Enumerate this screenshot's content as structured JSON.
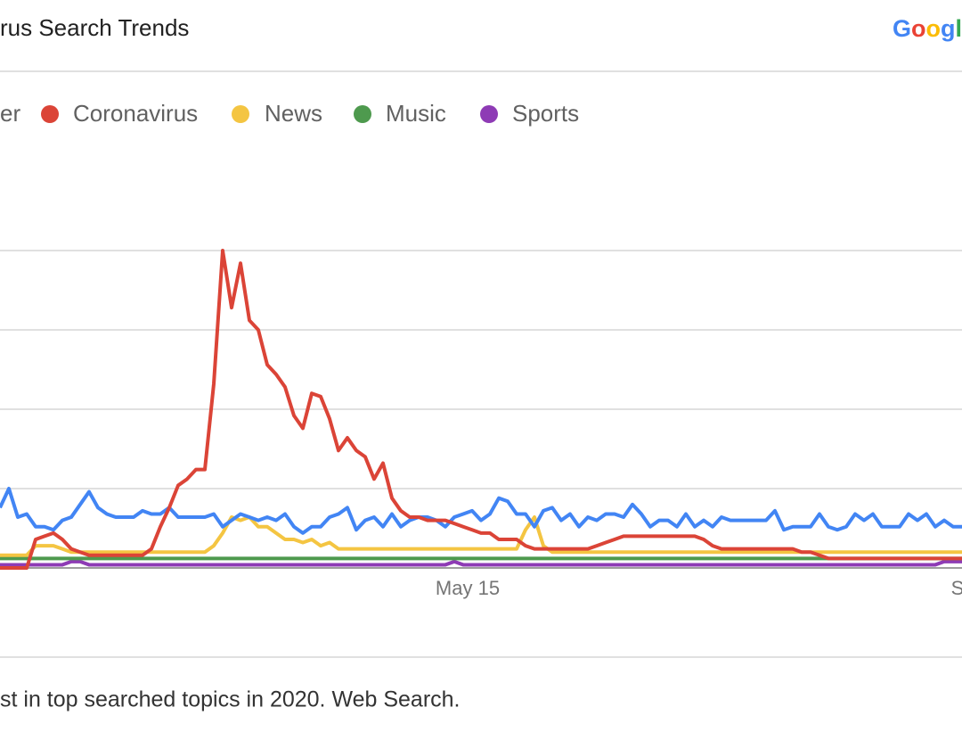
{
  "header": {
    "title": "rus Search Trends",
    "logo": [
      "G",
      "o",
      "o",
      "g",
      "l"
    ]
  },
  "chart_data": {
    "type": "line",
    "categories": [
      null,
      null,
      null,
      null,
      null,
      null,
      null,
      null,
      null,
      null,
      null,
      null,
      null,
      null,
      null,
      null,
      null,
      null,
      null,
      null,
      null,
      null,
      null,
      null,
      null,
      null,
      null,
      null,
      null,
      null,
      null,
      null,
      null,
      null,
      null,
      null,
      null,
      null,
      null,
      null,
      null,
      null,
      null,
      null,
      null,
      null,
      null,
      null,
      null,
      null,
      null,
      null,
      "May 15",
      null,
      null,
      null,
      null,
      null,
      null,
      null,
      null,
      null,
      null,
      null,
      null,
      null,
      null,
      null,
      null,
      null,
      null,
      null,
      null,
      null,
      null,
      null,
      null,
      null,
      null,
      null,
      null,
      null,
      null,
      null,
      null,
      null,
      null,
      null,
      null,
      null,
      null,
      null,
      null,
      null,
      null,
      null,
      null,
      null,
      null,
      null,
      null,
      null,
      null,
      null,
      null,
      null,
      null,
      "S",
      null
    ],
    "ylim": [
      0,
      100
    ],
    "yticks": [
      0,
      25,
      50,
      75,
      100
    ],
    "grid": true,
    "series": [
      {
        "name": "er",
        "color": "#4285f4",
        "values": [
          19,
          25,
          16,
          17,
          13,
          13,
          12,
          15,
          16,
          20,
          24,
          19,
          17,
          16,
          16,
          16,
          18,
          17,
          17,
          19,
          16,
          16,
          16,
          16,
          17,
          13,
          15,
          17,
          16,
          15,
          16,
          15,
          17,
          13,
          11,
          13,
          13,
          16,
          17,
          19,
          12,
          15,
          16,
          13,
          17,
          13,
          15,
          16,
          16,
          15,
          13,
          16,
          17,
          18,
          15,
          17,
          22,
          21,
          17,
          17,
          13,
          18,
          19,
          15,
          17,
          13,
          16,
          15,
          17,
          17,
          16,
          20,
          17,
          13,
          15,
          15,
          13,
          17,
          13,
          15,
          13,
          16,
          15,
          15,
          15,
          15,
          15,
          18,
          12,
          13,
          13,
          13,
          17,
          13,
          12,
          13,
          17,
          15,
          17,
          13,
          13,
          13,
          17,
          15,
          17,
          13,
          15,
          13,
          13
        ]
      },
      {
        "name": "Coronavirus",
        "color": "#db4437",
        "values": [
          0,
          0,
          0,
          0,
          9,
          10,
          11,
          9,
          6,
          5,
          4,
          4,
          4,
          4,
          4,
          4,
          4,
          6,
          13,
          19,
          26,
          28,
          31,
          31,
          58,
          100,
          82,
          96,
          78,
          75,
          64,
          61,
          57,
          48,
          44,
          55,
          54,
          47,
          37,
          41,
          37,
          35,
          28,
          33,
          22,
          18,
          16,
          16,
          15,
          15,
          15,
          14,
          13,
          12,
          11,
          11,
          9,
          9,
          9,
          7,
          6,
          6,
          6,
          6,
          6,
          6,
          6,
          7,
          8,
          9,
          10,
          10,
          10,
          10,
          10,
          10,
          10,
          10,
          10,
          9,
          7,
          6,
          6,
          6,
          6,
          6,
          6,
          6,
          6,
          6,
          5,
          5,
          4,
          3,
          3,
          3,
          3,
          3,
          3,
          3,
          3,
          3,
          3,
          3,
          3,
          3,
          3,
          3,
          3
        ]
      },
      {
        "name": "News",
        "color": "#f4c542",
        "values": [
          4,
          4,
          4,
          4,
          7,
          7,
          7,
          6,
          5,
          5,
          5,
          5,
          5,
          5,
          5,
          5,
          5,
          5,
          5,
          5,
          5,
          5,
          5,
          5,
          7,
          11,
          16,
          15,
          16,
          13,
          13,
          11,
          9,
          9,
          8,
          9,
          7,
          8,
          6,
          6,
          6,
          6,
          6,
          6,
          6,
          6,
          6,
          6,
          6,
          6,
          6,
          6,
          6,
          6,
          6,
          6,
          6,
          6,
          6,
          12,
          16,
          7,
          5,
          5,
          5,
          5,
          5,
          5,
          5,
          5,
          5,
          5,
          5,
          5,
          5,
          5,
          5,
          5,
          5,
          5,
          5,
          5,
          5,
          5,
          5,
          5,
          5,
          5,
          5,
          5,
          5,
          5,
          5,
          5,
          5,
          5,
          5,
          5,
          5,
          5,
          5,
          5,
          5,
          5,
          5,
          5,
          5,
          5,
          5
        ]
      },
      {
        "name": "Music",
        "color": "#4e9a4e",
        "values": [
          3,
          3,
          3,
          3,
          3,
          3,
          3,
          3,
          3,
          3,
          3,
          3,
          3,
          3,
          3,
          3,
          3,
          3,
          3,
          3,
          3,
          3,
          3,
          3,
          3,
          3,
          3,
          3,
          3,
          3,
          3,
          3,
          3,
          3,
          3,
          3,
          3,
          3,
          3,
          3,
          3,
          3,
          3,
          3,
          3,
          3,
          3,
          3,
          3,
          3,
          3,
          3,
          3,
          3,
          3,
          3,
          3,
          3,
          3,
          3,
          3,
          3,
          3,
          3,
          3,
          3,
          3,
          3,
          3,
          3,
          3,
          3,
          3,
          3,
          3,
          3,
          3,
          3,
          3,
          3,
          3,
          3,
          3,
          3,
          3,
          3,
          3,
          3,
          3,
          3,
          3,
          3,
          3,
          3,
          3,
          3,
          3,
          3,
          3,
          3,
          3,
          3,
          3,
          3,
          3,
          3,
          3,
          3,
          3
        ]
      },
      {
        "name": "Sports",
        "color": "#8e3bb5",
        "values": [
          1,
          1,
          1,
          1,
          1,
          1,
          1,
          1,
          2,
          2,
          1,
          1,
          1,
          1,
          1,
          1,
          1,
          1,
          1,
          1,
          1,
          1,
          1,
          1,
          1,
          1,
          1,
          1,
          1,
          1,
          1,
          1,
          1,
          1,
          1,
          1,
          1,
          1,
          1,
          1,
          1,
          1,
          1,
          1,
          1,
          1,
          1,
          1,
          1,
          1,
          1,
          2,
          1,
          1,
          1,
          1,
          1,
          1,
          1,
          1,
          1,
          1,
          1,
          1,
          1,
          1,
          1,
          1,
          1,
          1,
          1,
          1,
          1,
          1,
          1,
          1,
          1,
          1,
          1,
          1,
          1,
          1,
          1,
          1,
          1,
          1,
          1,
          1,
          1,
          1,
          1,
          1,
          1,
          1,
          1,
          1,
          1,
          1,
          1,
          1,
          1,
          1,
          1,
          1,
          1,
          1,
          2,
          2,
          2
        ]
      }
    ]
  },
  "footer": "st in top searched topics in 2020. Web Search."
}
